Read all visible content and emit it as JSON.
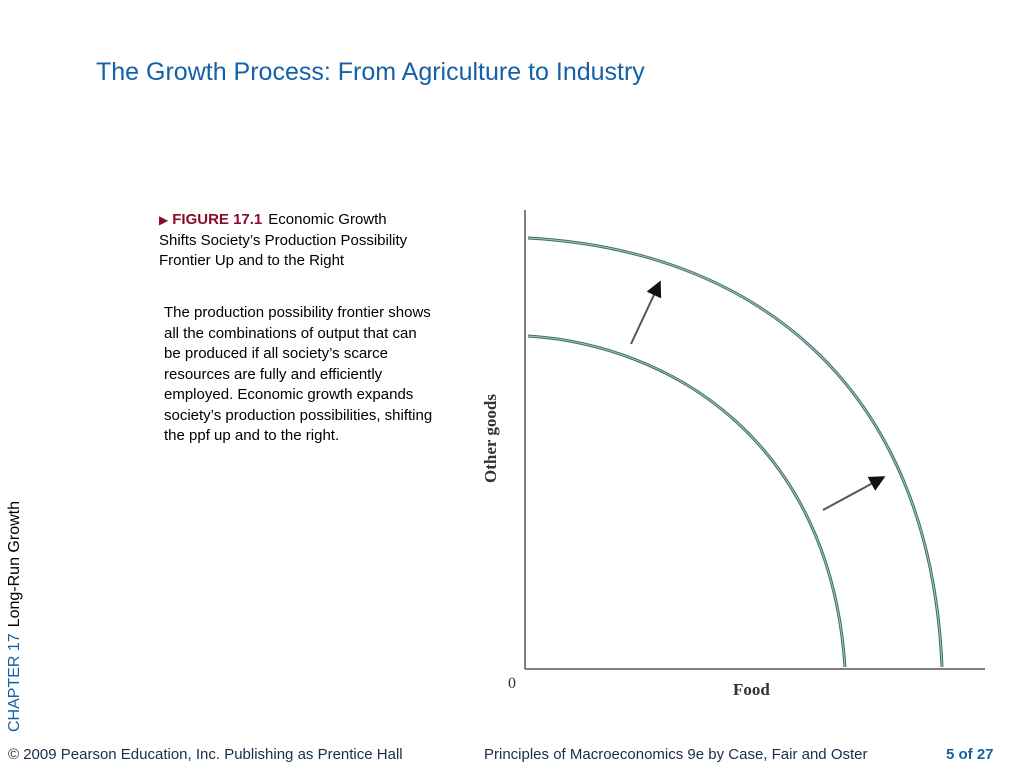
{
  "slide": {
    "title": "The Growth Process: From Agriculture to Industry",
    "chapter_number": "CHAPTER 17",
    "chapter_title": "Long-Run Growth"
  },
  "figure": {
    "marker_icon": "triangle-right-icon",
    "label": "FIGURE 17.1",
    "caption_title": "Economic Growth Shifts Society’s Production Possibility Frontier Up and to the Right",
    "description": "The production possibility frontier shows all the combinations of output that can be produced if all society’s scarce resources are fully and efficiently employed. Economic growth expands society’s production possibilities, shifting the ppf up and to the right."
  },
  "diagram": {
    "y_axis_label": "Other goods",
    "x_axis_label": "Food",
    "origin_label": "0",
    "curves": [
      "ppf-original",
      "ppf-shifted"
    ],
    "curve_color": "#3d6e6a"
  },
  "footer": {
    "copyright": "© 2009 Pearson Education, Inc. Publishing as Prentice Hall",
    "book": "Principles of Macroeconomics 9e by Case, Fair and Oster",
    "page": "5 of 27"
  }
}
